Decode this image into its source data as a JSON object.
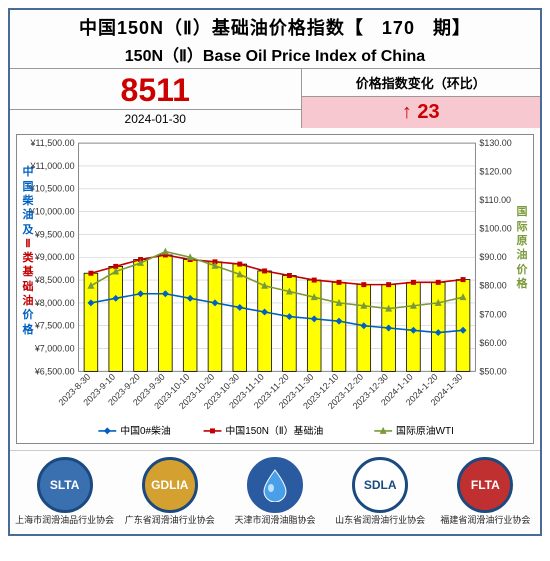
{
  "header": {
    "title_cn_prefix": "中国150N（Ⅱ）基础油价格指数【",
    "issue_number": "170",
    "title_cn_suffix": "期】",
    "title_en": "150N（Ⅱ）Base Oil Price Index of China"
  },
  "index_box": {
    "value": "8511",
    "date": "2024-01-30",
    "change_label": "价格指数变化（环比）",
    "change_arrow": "↑",
    "change_value": "23"
  },
  "chart": {
    "type": "combo-bar-line-dual-axis",
    "background_color": "#ffffff",
    "plot_border_color": "#888888",
    "grid_color": "#cccccc",
    "y_left": {
      "min": 6500,
      "max": 11500,
      "step": 500,
      "prefix": "¥",
      "suffix": ".00",
      "tick_fontsize": 9,
      "tick_color": "#333333",
      "title": "中国柴油及Ⅱ类基础油价格",
      "title_color_main": "#0060c0",
      "title_color_accent": "#c00000"
    },
    "y_right": {
      "min": 50,
      "max": 130,
      "step": 10,
      "prefix": "$",
      "suffix": ".00",
      "tick_fontsize": 9,
      "tick_color": "#333333",
      "title": "国际原油价格",
      "title_color": "#7a9a3a"
    },
    "x": {
      "categories": [
        "2023-8-30",
        "2023-9-10",
        "2023-9-20",
        "2023-9-30",
        "2023-10-10",
        "2023-10-20",
        "2023-10-30",
        "2023-11-10",
        "2023-11-20",
        "2023-11-30",
        "2023-12-10",
        "2023-12-20",
        "2023-12-30",
        "2024-1-10",
        "2024-1-20",
        "2024-1-30"
      ],
      "rotation": -45,
      "fontsize": 9,
      "color": "#333333"
    },
    "series": [
      {
        "name": "中国150N（Ⅱ）基础油",
        "legend_label": "中国150N（Ⅱ）基础油",
        "type": "bar-with-line-top",
        "axis": "left",
        "bar_fill": "#ffff00",
        "bar_border": "#000000",
        "bar_width": 0.55,
        "line_color": "#c00000",
        "marker": "square",
        "marker_color": "#c00000",
        "marker_size": 5,
        "values": [
          8650,
          8800,
          8950,
          9050,
          8950,
          8900,
          8850,
          8700,
          8600,
          8500,
          8450,
          8400,
          8400,
          8450,
          8450,
          8511
        ]
      },
      {
        "name": "中国0#柴油",
        "legend_label": "中国0#柴油",
        "type": "line",
        "axis": "left",
        "line_color": "#0060c0",
        "marker": "diamond",
        "marker_color": "#0060c0",
        "marker_size": 5,
        "values": [
          8000,
          8100,
          8200,
          8200,
          8100,
          8000,
          7900,
          7800,
          7700,
          7650,
          7600,
          7500,
          7450,
          7400,
          7350,
          7400
        ]
      },
      {
        "name": "国际原油WTI",
        "legend_label": "国际原油WTI",
        "type": "line",
        "axis": "right",
        "line_color": "#7a9a3a",
        "marker": "triangle",
        "marker_color": "#7a9a3a",
        "marker_size": 6,
        "values": [
          80,
          85,
          88,
          92,
          90,
          87,
          84,
          80,
          78,
          76,
          74,
          73,
          72,
          73,
          74,
          76
        ]
      }
    ],
    "legend": {
      "position": "bottom",
      "fontsize": 10,
      "items": [
        "中国0#柴油",
        "中国150N（Ⅱ）基础油",
        "国际原油WTI"
      ]
    }
  },
  "logos": [
    {
      "abbr": "SLTA",
      "caption": "上海市润滑油品行业协会",
      "bg": "#3a6fb0",
      "ring": "#1a4a80"
    },
    {
      "abbr": "GDLIA",
      "caption": "广东省润滑油行业协会",
      "bg": "#d4a030",
      "ring": "#1a4a80"
    },
    {
      "abbr": "",
      "caption": "天津市润滑油脂协会",
      "bg": "#2a5aa0",
      "ring": "#2a5aa0",
      "icon": "droplet"
    },
    {
      "abbr": "SDLA",
      "caption": "山东省润滑油行业协会",
      "bg": "#ffffff",
      "ring": "#1a4a80",
      "text_color": "#1a4a80"
    },
    {
      "abbr": "FLTA",
      "caption": "福建省润滑油行业协会",
      "bg": "#c03030",
      "ring": "#1a4a80"
    }
  ]
}
